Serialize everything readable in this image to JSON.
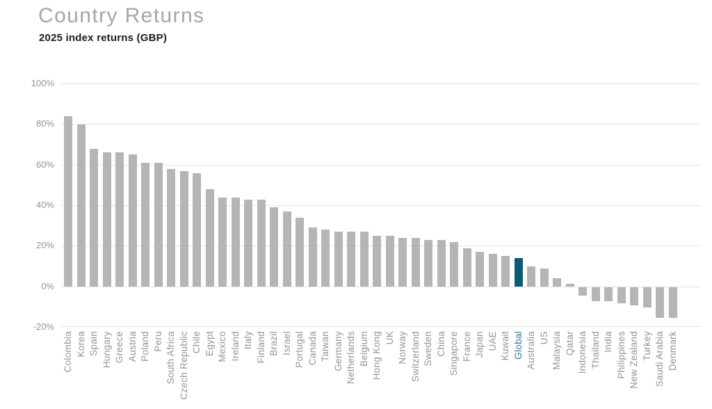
{
  "chart_data": {
    "type": "bar",
    "title": "Country Returns",
    "subtitle": "2025 index returns (GBP)",
    "xlabel": "",
    "ylabel": "",
    "ylim": [
      -20,
      100
    ],
    "yticks": [
      100,
      80,
      60,
      40,
      20,
      0,
      -20
    ],
    "ytick_labels": [
      "100%",
      "80%",
      "60%",
      "40%",
      "20%",
      "0%",
      "-20%"
    ],
    "grid": "horizontal",
    "legend": "none",
    "highlight_category": "Global",
    "categories": [
      "Colombia",
      "Korea",
      "Spain",
      "Hungary",
      "Greece",
      "Austria",
      "Poland",
      "Peru",
      "South Africa",
      "Czech Republic",
      "Chile",
      "Egypt",
      "Mexico",
      "Ireland",
      "Italy",
      "Finland",
      "Brazil",
      "Israel",
      "Portugal",
      "Canada",
      "Taiwan",
      "Germany",
      "Netherlands",
      "Belgium",
      "Hong Kong",
      "UK",
      "Norway",
      "Switzerland",
      "Sweden",
      "China",
      "Singapore",
      "France",
      "Japan",
      "UAE",
      "Kuwait",
      "Global",
      "Australia",
      "US",
      "Malaysia",
      "Qatar",
      "Indonesia",
      "Thailand",
      "India",
      "Philippines",
      "New Zealand",
      "Turkey",
      "Saudi Arabia",
      "Denmark"
    ],
    "values": [
      84,
      80,
      68,
      66,
      66,
      65,
      61,
      61,
      58,
      57,
      56,
      48,
      44,
      44,
      43,
      43,
      39,
      37,
      34,
      29,
      28,
      27,
      27,
      27,
      25,
      25,
      24,
      24,
      23,
      23,
      22,
      19,
      17,
      16,
      15,
      14,
      10,
      9,
      4,
      1.5,
      -4,
      -7,
      -7,
      -8,
      -9,
      -10,
      -15,
      -15
    ]
  },
  "colors": {
    "bar": "#b5b5b5",
    "highlight_bar": "#0b5c72",
    "highlight_label": "#2e7a99",
    "gridline": "#e4e4e4",
    "axis_text": "#949494",
    "title": "#a6a6a6",
    "subtitle": "#1c1c1c",
    "background": "#ffffff"
  }
}
